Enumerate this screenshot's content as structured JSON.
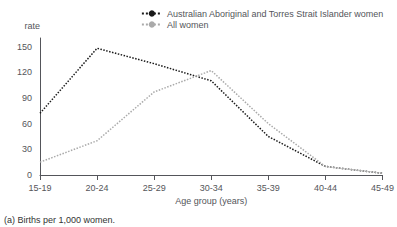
{
  "chart_data": {
    "type": "line",
    "categories": [
      "15-19",
      "20-24",
      "25-29",
      "30-34",
      "35-39",
      "40-44",
      "45-49"
    ],
    "series": [
      {
        "name": "Australian Aboriginal and Torres Strait Islander women",
        "color": "#1a1a1a",
        "values": [
          72,
          148,
          130,
          110,
          45,
          10,
          2
        ]
      },
      {
        "name": "All women",
        "color": "#aaaaaa",
        "values": [
          15,
          40,
          97,
          122,
          60,
          10,
          2
        ]
      }
    ],
    "y_label": "rate",
    "x_label": "Age group (years)",
    "footnote": "(a) Births per 1,000 women.",
    "ylim": [
      0,
      160
    ],
    "yticks": [
      0,
      30,
      60,
      90,
      120,
      150
    ],
    "line_style": "dotted",
    "grid": false,
    "legend": "upper right"
  }
}
